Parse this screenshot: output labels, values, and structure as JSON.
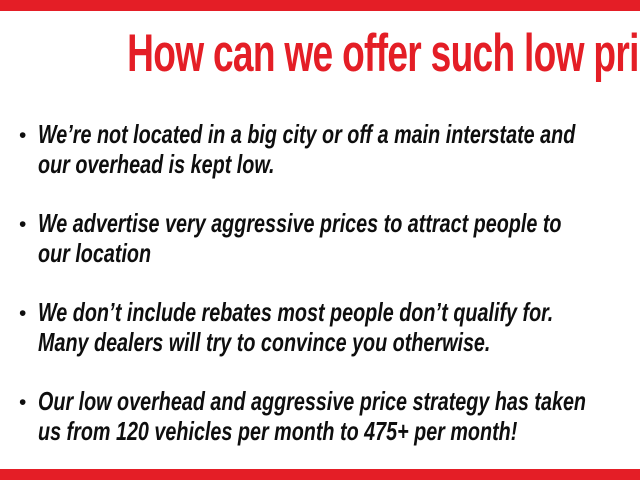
{
  "colors": {
    "red": "#E41E26",
    "ink": "#0E0E0E",
    "bg": "#FFFFFF"
  },
  "title": {
    "text": "How can we offer such low prices?"
  },
  "list": {
    "bullet_glyph": "•",
    "items": [
      {
        "lines": [
          "We’re not located in a big city or off a main interstate and",
          "our overhead is kept low."
        ]
      },
      {
        "lines": [
          "We advertise very aggressive prices to attract people to",
          "our location"
        ]
      },
      {
        "lines": [
          "We don’t include rebates most people don’t qualify for.",
          "Many dealers will try to convince you otherwise."
        ]
      },
      {
        "lines": [
          "Our low overhead and aggressive price strategy has taken",
          "us from 120 vehicles per month to 475+ per month!"
        ]
      }
    ]
  }
}
